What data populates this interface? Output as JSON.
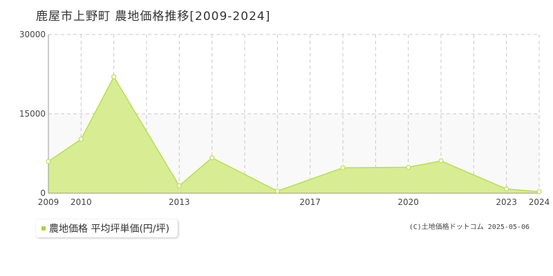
{
  "title": "鹿屋市上野町 農地価格推移[2009-2024]",
  "legend": {
    "label": "農地価格 平均坪単価(円/坪)"
  },
  "copyright": "(C)土地価格ドットコム 2025-05-06",
  "colors": {
    "line": "#b7e04a",
    "fill": "#d8ec94",
    "marker_fill": "#ffffff",
    "band": "#f9f9f9",
    "grid": "#c8c8c8",
    "axis": "#999999"
  },
  "chart_data": {
    "type": "area",
    "title": "鹿屋市上野町 農地価格推移[2009-2024]",
    "xlabel": "",
    "ylabel": "",
    "xlim": [
      2009,
      2024
    ],
    "ylim": [
      0,
      30000
    ],
    "x_ticks": [
      2009,
      2010,
      2013,
      2017,
      2020,
      2023,
      2024
    ],
    "y_ticks": [
      0,
      15000,
      30000
    ],
    "grid": true,
    "legend_position": "bottom-left",
    "series": [
      {
        "name": "農地価格 平均坪単価(円/坪)",
        "x": [
          2009,
          2010,
          2011,
          2013,
          2014,
          2016,
          2018,
          2020,
          2021,
          2023,
          2024
        ],
        "y": [
          6000,
          10200,
          22000,
          1400,
          6700,
          400,
          4800,
          4900,
          6100,
          800,
          300
        ]
      }
    ]
  }
}
